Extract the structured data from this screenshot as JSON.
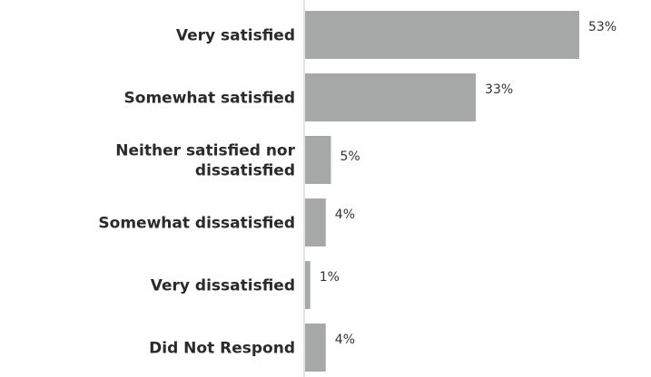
{
  "chart_data": {
    "type": "bar",
    "orientation": "horizontal",
    "categories": [
      "Very satisfied",
      "Somewhat satisfied",
      "Neither satisfied nor dissatisfied",
      "Somewhat dissatisfied",
      "Very dissatisfied",
      "Did Not Respond"
    ],
    "category_label_lines": [
      [
        "Very satisfied"
      ],
      [
        "Somewhat satisfied"
      ],
      [
        "Neither satisfied nor",
        "dissatisfied"
      ],
      [
        "Somewhat dissatisfied"
      ],
      [
        "Very dissatisfied"
      ],
      [
        "Did Not Respond"
      ]
    ],
    "values": [
      53,
      33,
      5,
      4,
      1,
      4
    ],
    "value_labels": [
      "53%",
      "33%",
      "5%",
      "4%",
      "1%",
      "4%"
    ],
    "title": "",
    "xlabel": "",
    "ylabel": "",
    "xlim": [
      0,
      100
    ],
    "grid": false,
    "legend": "none",
    "colors": {
      "bar": "#a6a9a8",
      "axis": "#c8c8c8",
      "label": "#2a2a2a",
      "value": "#333333"
    }
  }
}
